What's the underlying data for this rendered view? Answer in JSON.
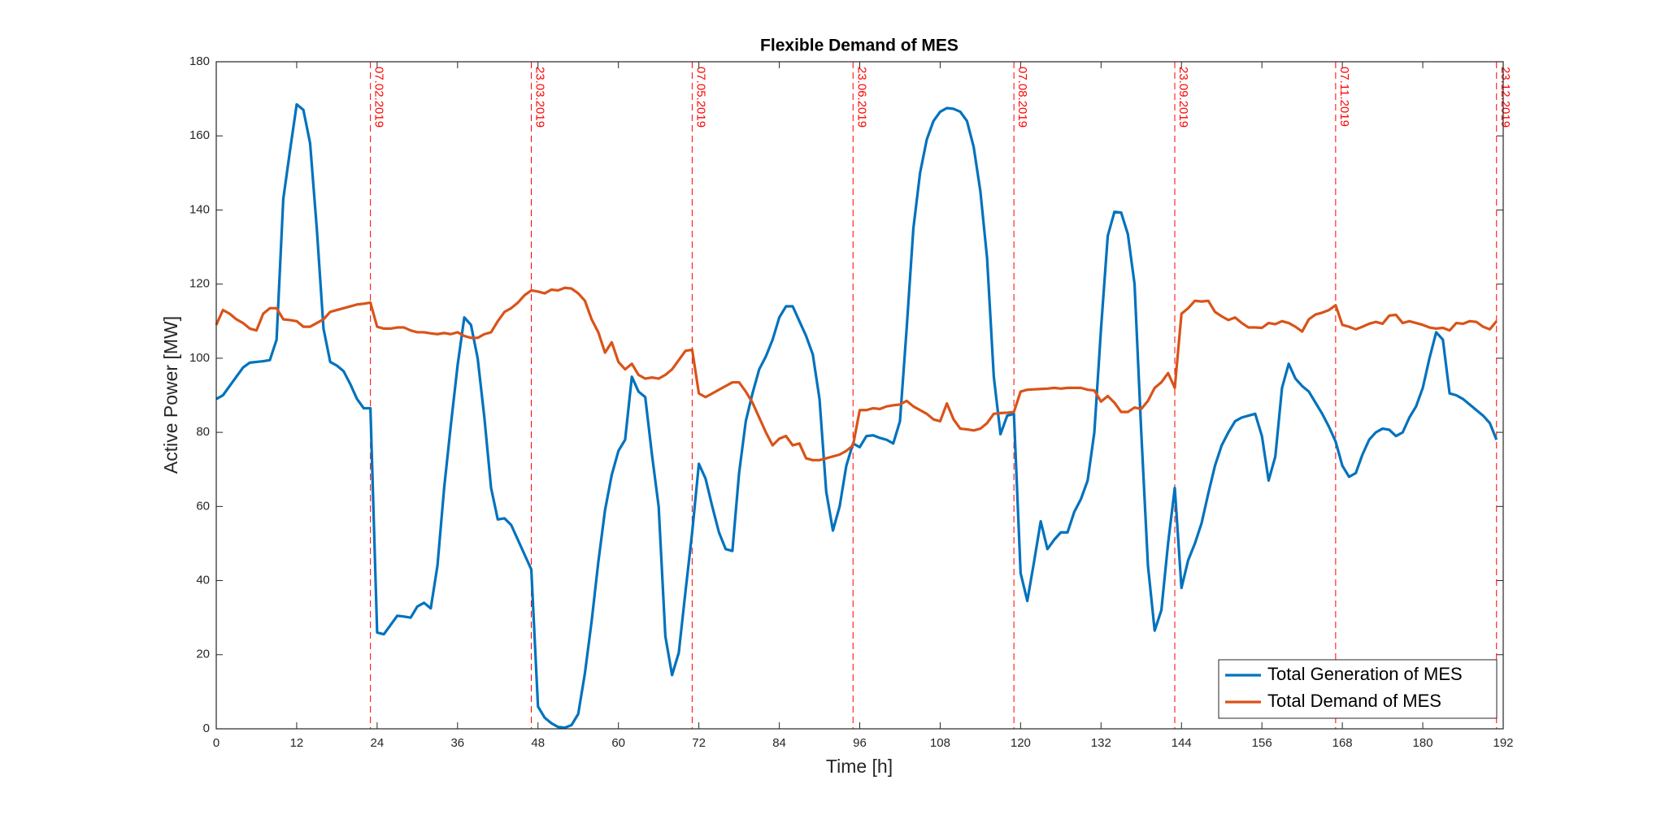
{
  "chart_data": {
    "type": "line",
    "title": "Flexible Demand of MES",
    "xlabel": "Time [h]",
    "ylabel": "Active Power [MW]",
    "x": [
      0,
      1,
      2,
      3,
      4,
      5,
      6,
      7,
      8,
      9,
      10,
      11,
      12,
      13,
      14,
      15,
      16,
      17,
      18,
      19,
      20,
      21,
      22,
      23,
      24,
      25,
      26,
      27,
      28,
      29,
      30,
      31,
      32,
      33,
      34,
      35,
      36,
      37,
      38,
      39,
      40,
      41,
      42,
      43,
      44,
      45,
      46,
      47,
      48,
      49,
      50,
      51,
      52,
      53,
      54,
      55,
      56,
      57,
      58,
      59,
      60,
      61,
      62,
      63,
      64,
      65,
      66,
      67,
      68,
      69,
      70,
      71,
      72,
      73,
      74,
      75,
      76,
      77,
      78,
      79,
      80,
      81,
      82,
      83,
      84,
      85,
      86,
      87,
      88,
      89,
      90,
      91,
      92,
      93,
      94,
      95,
      96,
      97,
      98,
      99,
      100,
      101,
      102,
      103,
      104,
      105,
      106,
      107,
      108,
      109,
      110,
      111,
      112,
      113,
      114,
      115,
      116,
      117,
      118,
      119,
      120,
      121,
      122,
      123,
      124,
      125,
      126,
      127,
      128,
      129,
      130,
      131,
      132,
      133,
      134,
      135,
      136,
      137,
      138,
      139,
      140,
      141,
      142,
      143,
      144,
      145,
      146,
      147,
      148,
      149,
      150,
      151,
      152,
      153,
      154,
      155,
      156,
      157,
      158,
      159,
      160,
      161,
      162,
      163,
      164,
      165,
      166,
      167,
      168,
      169,
      170,
      171,
      172,
      173,
      174,
      175,
      176,
      177,
      178,
      179,
      180,
      181,
      182,
      183,
      184,
      185,
      186,
      187,
      188,
      189,
      190,
      191
    ],
    "series": [
      {
        "name": "Total Generation of MES",
        "color": "#0072bd",
        "values": [
          89,
          90,
          92.5,
          95,
          97.5,
          98.8,
          99,
          99.2,
          99.5,
          105,
          143,
          156,
          168.5,
          167,
          158,
          135,
          108,
          99,
          98,
          96.5,
          93,
          89,
          86.5,
          86.5,
          26,
          25.5,
          28,
          30.5,
          30.3,
          30,
          33,
          34,
          32.5,
          44,
          65,
          82,
          98,
          111,
          109,
          100,
          84,
          65,
          56.5,
          56.8,
          55,
          51,
          47,
          43,
          6,
          3,
          1.5,
          0.5,
          0.3,
          1,
          4,
          15,
          29,
          45,
          59,
          68.5,
          75,
          78,
          95,
          91,
          89.5,
          74,
          60,
          25,
          14.5,
          20.5,
          37,
          53,
          71.5,
          67.5,
          60,
          53,
          48.5,
          48,
          69,
          83,
          90.5,
          97,
          100.5,
          105,
          111,
          114,
          114,
          110,
          106,
          101,
          89,
          64,
          53.5,
          60,
          71,
          77,
          76,
          79,
          79.2,
          78.5,
          78,
          77,
          83,
          108,
          135,
          150,
          159,
          164,
          166.5,
          167.5,
          167.3,
          166.5,
          164,
          157,
          145,
          127,
          95,
          79.5,
          84.5,
          85,
          42,
          34.5,
          45,
          56,
          48.5,
          51,
          53,
          53,
          58.5,
          62,
          67,
          80,
          108,
          133,
          139.5,
          139.3,
          133.5,
          120,
          80,
          44,
          26.5,
          32,
          50,
          65,
          38,
          45.5,
          50,
          55.5,
          63.5,
          71,
          76.5,
          80,
          83,
          84,
          84.5,
          85,
          79,
          67,
          73.5,
          92,
          98.5,
          94.5,
          92.5,
          91,
          88,
          85,
          81.5,
          77.5,
          71,
          68,
          69,
          74,
          78,
          80,
          81,
          80.7,
          79,
          80,
          84,
          87,
          92,
          100,
          107,
          105,
          90.5,
          90,
          89,
          87.5,
          86,
          84.5,
          82.5,
          78
        ]
      },
      {
        "name": "Total Demand of MES",
        "color": "#d95319",
        "values": [
          109,
          113,
          112,
          110.5,
          109.5,
          108,
          107.5,
          112,
          113.5,
          113.5,
          110.5,
          110.3,
          110,
          108.5,
          108.5,
          109.5,
          110.5,
          112.5,
          113,
          113.5,
          114,
          114.5,
          114.7,
          115,
          108.5,
          108,
          108,
          108.3,
          108.3,
          107.5,
          107,
          107,
          106.7,
          106.5,
          106.8,
          106.5,
          107,
          106,
          105.5,
          105.5,
          106.5,
          107,
          110,
          112.5,
          113.5,
          115,
          117,
          118.3,
          118,
          117.5,
          118.5,
          118.3,
          119,
          118.8,
          117.5,
          115.5,
          110.5,
          107,
          101.5,
          104.3,
          99,
          97,
          98.5,
          95.5,
          94.5,
          94.8,
          94.5,
          95.5,
          97,
          99.5,
          102,
          102.3,
          90.5,
          89.5,
          90.5,
          91.5,
          92.5,
          93.5,
          93.5,
          91,
          88,
          84,
          80,
          76.5,
          78.3,
          79,
          76.5,
          77,
          73,
          72.5,
          72.5,
          73,
          73.5,
          74,
          75,
          76.5,
          86,
          86,
          86.5,
          86.3,
          87,
          87.3,
          87.5,
          88.5,
          87,
          86,
          85,
          83.5,
          83,
          87.8,
          83.5,
          81,
          80.8,
          80.5,
          81,
          82.5,
          85,
          85.2,
          85.3,
          85.5,
          91,
          91.5,
          91.6,
          91.7,
          91.8,
          92,
          91.8,
          92,
          92,
          92,
          91.5,
          91.3,
          88.3,
          89.8,
          88,
          85.5,
          85.5,
          86.7,
          86.3,
          88.5,
          92,
          93.5,
          96,
          92,
          112,
          113.5,
          115.5,
          115.3,
          115.5,
          112.5,
          111.3,
          110.3,
          111,
          109.5,
          108.3,
          108.3,
          108.2,
          109.5,
          109.2,
          110,
          109.5,
          108.5,
          107.2,
          110.5,
          111.8,
          112.3,
          113,
          114.3,
          109,
          108.5,
          107.8,
          108.5,
          109.3,
          109.8,
          109.3,
          111.5,
          111.7,
          109.5,
          110,
          109.5,
          109,
          108.3,
          108,
          108.2,
          107.5,
          109.5,
          109.3,
          110,
          109.8,
          108.5,
          107.8,
          110
        ]
      }
    ],
    "markers": [
      {
        "x": 23,
        "label": "07.02.2019"
      },
      {
        "x": 47,
        "label": "23.03.2019"
      },
      {
        "x": 71,
        "label": "07.05.2019"
      },
      {
        "x": 95,
        "label": "23.06.2019"
      },
      {
        "x": 119,
        "label": "07.08.2019"
      },
      {
        "x": 143,
        "label": "23.09.2019"
      },
      {
        "x": 167,
        "label": "07.11.2019"
      },
      {
        "x": 191,
        "label": "23.12.2019"
      }
    ],
    "marker_color": "#ff0000",
    "xlim": [
      0,
      192
    ],
    "xticks": [
      0,
      12,
      24,
      36,
      48,
      60,
      72,
      84,
      96,
      108,
      120,
      132,
      144,
      156,
      168,
      180,
      192
    ],
    "ylim": [
      0,
      180
    ],
    "yticks": [
      0,
      20,
      40,
      60,
      80,
      100,
      120,
      140,
      160,
      180
    ],
    "legend": "lower right"
  }
}
